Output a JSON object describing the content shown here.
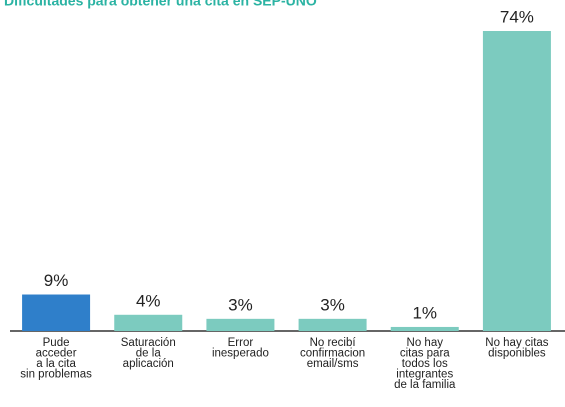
{
  "chart_data": {
    "type": "bar",
    "title": "Dificultades para obtener una cita en SEP-UNO",
    "categories": [
      "Pude\nacceder\na la cita\nsin problemas",
      "Saturación\nde la\naplicación",
      "Error\ninesperado",
      "No recibí\nconfirmacion\nemail/sms",
      "No hay\ncitas para\ntodos los\nintegrantes\nde la familia",
      "No hay citas\ndisponibles"
    ],
    "values": [
      9,
      4,
      3,
      3,
      1,
      74
    ],
    "value_labels": [
      "9%",
      "4%",
      "3%",
      "3%",
      "1%",
      "74%"
    ],
    "colors": [
      "#2f7fca",
      "#7ccbbf",
      "#7ccbbf",
      "#7ccbbf",
      "#7ccbbf",
      "#7ccbbf"
    ]
  }
}
